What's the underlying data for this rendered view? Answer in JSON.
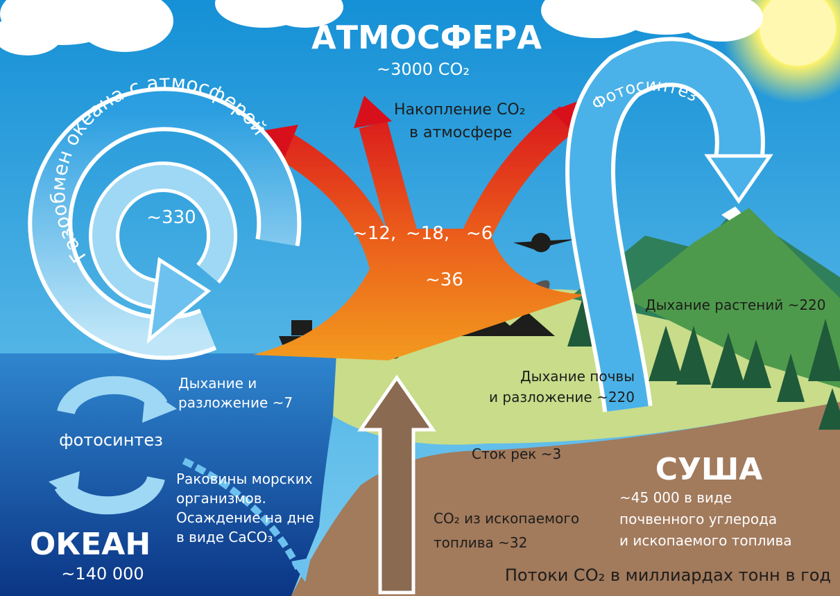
{
  "atmosphere": {
    "title": "АТМОСФЕРА",
    "amount": "~3000 CO₂"
  },
  "accumulation": {
    "lines": [
      "Накопление CO₂",
      "в атмосфере"
    ]
  },
  "ocean_exchange": {
    "label": "Газообмен океана с атмосферой",
    "amount": "~330"
  },
  "photosynthesis_land": {
    "label": "Фотосинтез"
  },
  "emission_flows": [
    "~12,",
    "~18,",
    "~6",
    "~36"
  ],
  "plant_respiration": {
    "label": "Дыхание растений ~220"
  },
  "soil_respiration": {
    "lines": [
      "Дыхание почвы",
      "и разложение ~220"
    ]
  },
  "ocean_respiration": {
    "lines": [
      "Дыхание и",
      "разложение ~7"
    ]
  },
  "ocean_photosynthesis": {
    "label": "фотосинтез"
  },
  "shells": {
    "lines": [
      "Раковины морских",
      "организмов.",
      "Осаждение на дне",
      "в виде CaCO₃"
    ]
  },
  "ocean": {
    "title": "ОКЕАН",
    "amount": "~140 000"
  },
  "river_runoff": {
    "label": "Сток рек ~3"
  },
  "fossil_fuel": {
    "lines": [
      "CO₂ из ископаемого",
      "топлива ~32"
    ]
  },
  "land": {
    "title": "СУША",
    "lines": [
      "~45 000 в виде",
      "почвенного углерода",
      "и ископаемого топлива"
    ]
  },
  "footer": {
    "caption": "Потоки CO₂ в миллиардах тонн в год"
  }
}
